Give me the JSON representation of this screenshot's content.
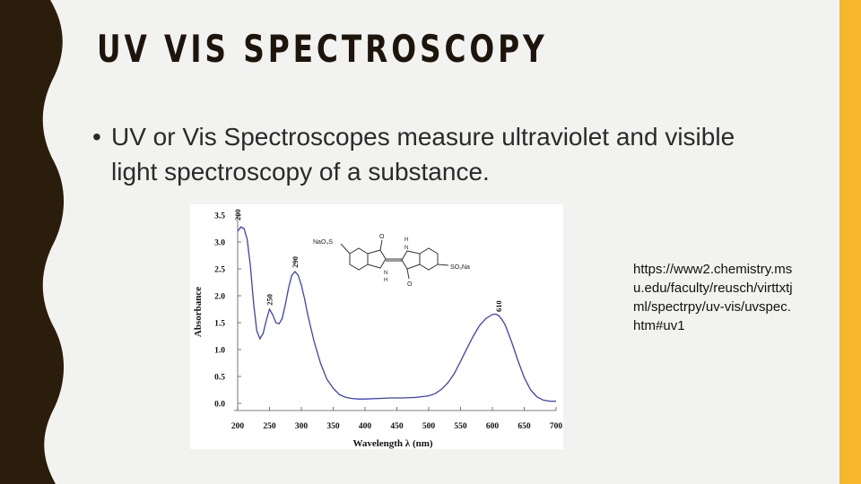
{
  "slide": {
    "title": "UV VIS SPECTROSCOPY",
    "bullet_marker": "•",
    "bullet_text": "UV or Vis Spectroscopes measure ultraviolet and visible light spectroscopy of a substance.",
    "source_link": "https://www2.chemistry.msu.edu/faculty/reusch/virttxtjml/spectrpy/uv-vis/uvspec.htm#uv1",
    "colors": {
      "accent_bar": "#f6b82a",
      "left_border": "#2b1d0c",
      "background": "#f2f2f0"
    }
  },
  "molecule": {
    "label_left": "NaO₃S",
    "label_right": "SO₃Na",
    "nh_top": "H",
    "nh_top_n": "N",
    "nh_bottom": "H",
    "nh_bottom_n": "N",
    "o_top": "O",
    "o_bottom": "O"
  },
  "chart_data": {
    "type": "line",
    "xlabel": "Wavelength λ (nm)",
    "ylabel": "Absorbance",
    "xlim": [
      200,
      700
    ],
    "ylim": [
      0,
      3.5
    ],
    "x_ticks": [
      "200",
      "250",
      "300",
      "350",
      "400",
      "450",
      "500",
      "550",
      "600",
      "650",
      "700"
    ],
    "y_ticks": [
      "0.0",
      "0.5",
      "1.0",
      "1.5",
      "2.0",
      "2.5",
      "3.0",
      "3.5"
    ],
    "peak_labels": [
      {
        "text": "200",
        "x": 200,
        "y": 3.4
      },
      {
        "text": "250",
        "x": 250,
        "y": 1.82
      },
      {
        "text": "290",
        "x": 290,
        "y": 2.52
      },
      {
        "text": "610",
        "x": 610,
        "y": 1.7
      }
    ],
    "series": [
      {
        "color": "#3b3fc8",
        "x": [
          200,
          205,
          210,
          215,
          220,
          225,
          230,
          235,
          240,
          245,
          250,
          255,
          260,
          265,
          270,
          275,
          280,
          285,
          290,
          295,
          300,
          305,
          310,
          320,
          330,
          340,
          350,
          360,
          370,
          380,
          390,
          400,
          420,
          440,
          460,
          480,
          500,
          510,
          520,
          530,
          540,
          550,
          560,
          570,
          580,
          590,
          600,
          605,
          610,
          615,
          620,
          630,
          640,
          650,
          660,
          670,
          680,
          690,
          700
        ],
        "y": [
          3.2,
          3.28,
          3.25,
          3.05,
          2.55,
          1.85,
          1.35,
          1.2,
          1.3,
          1.55,
          1.75,
          1.65,
          1.5,
          1.48,
          1.58,
          1.85,
          2.15,
          2.38,
          2.45,
          2.38,
          2.2,
          1.95,
          1.65,
          1.15,
          0.75,
          0.45,
          0.28,
          0.16,
          0.11,
          0.09,
          0.08,
          0.08,
          0.09,
          0.1,
          0.1,
          0.11,
          0.14,
          0.18,
          0.26,
          0.38,
          0.55,
          0.78,
          1.02,
          1.25,
          1.45,
          1.58,
          1.65,
          1.66,
          1.63,
          1.56,
          1.46,
          1.15,
          0.8,
          0.48,
          0.25,
          0.12,
          0.06,
          0.04,
          0.04
        ]
      }
    ]
  }
}
